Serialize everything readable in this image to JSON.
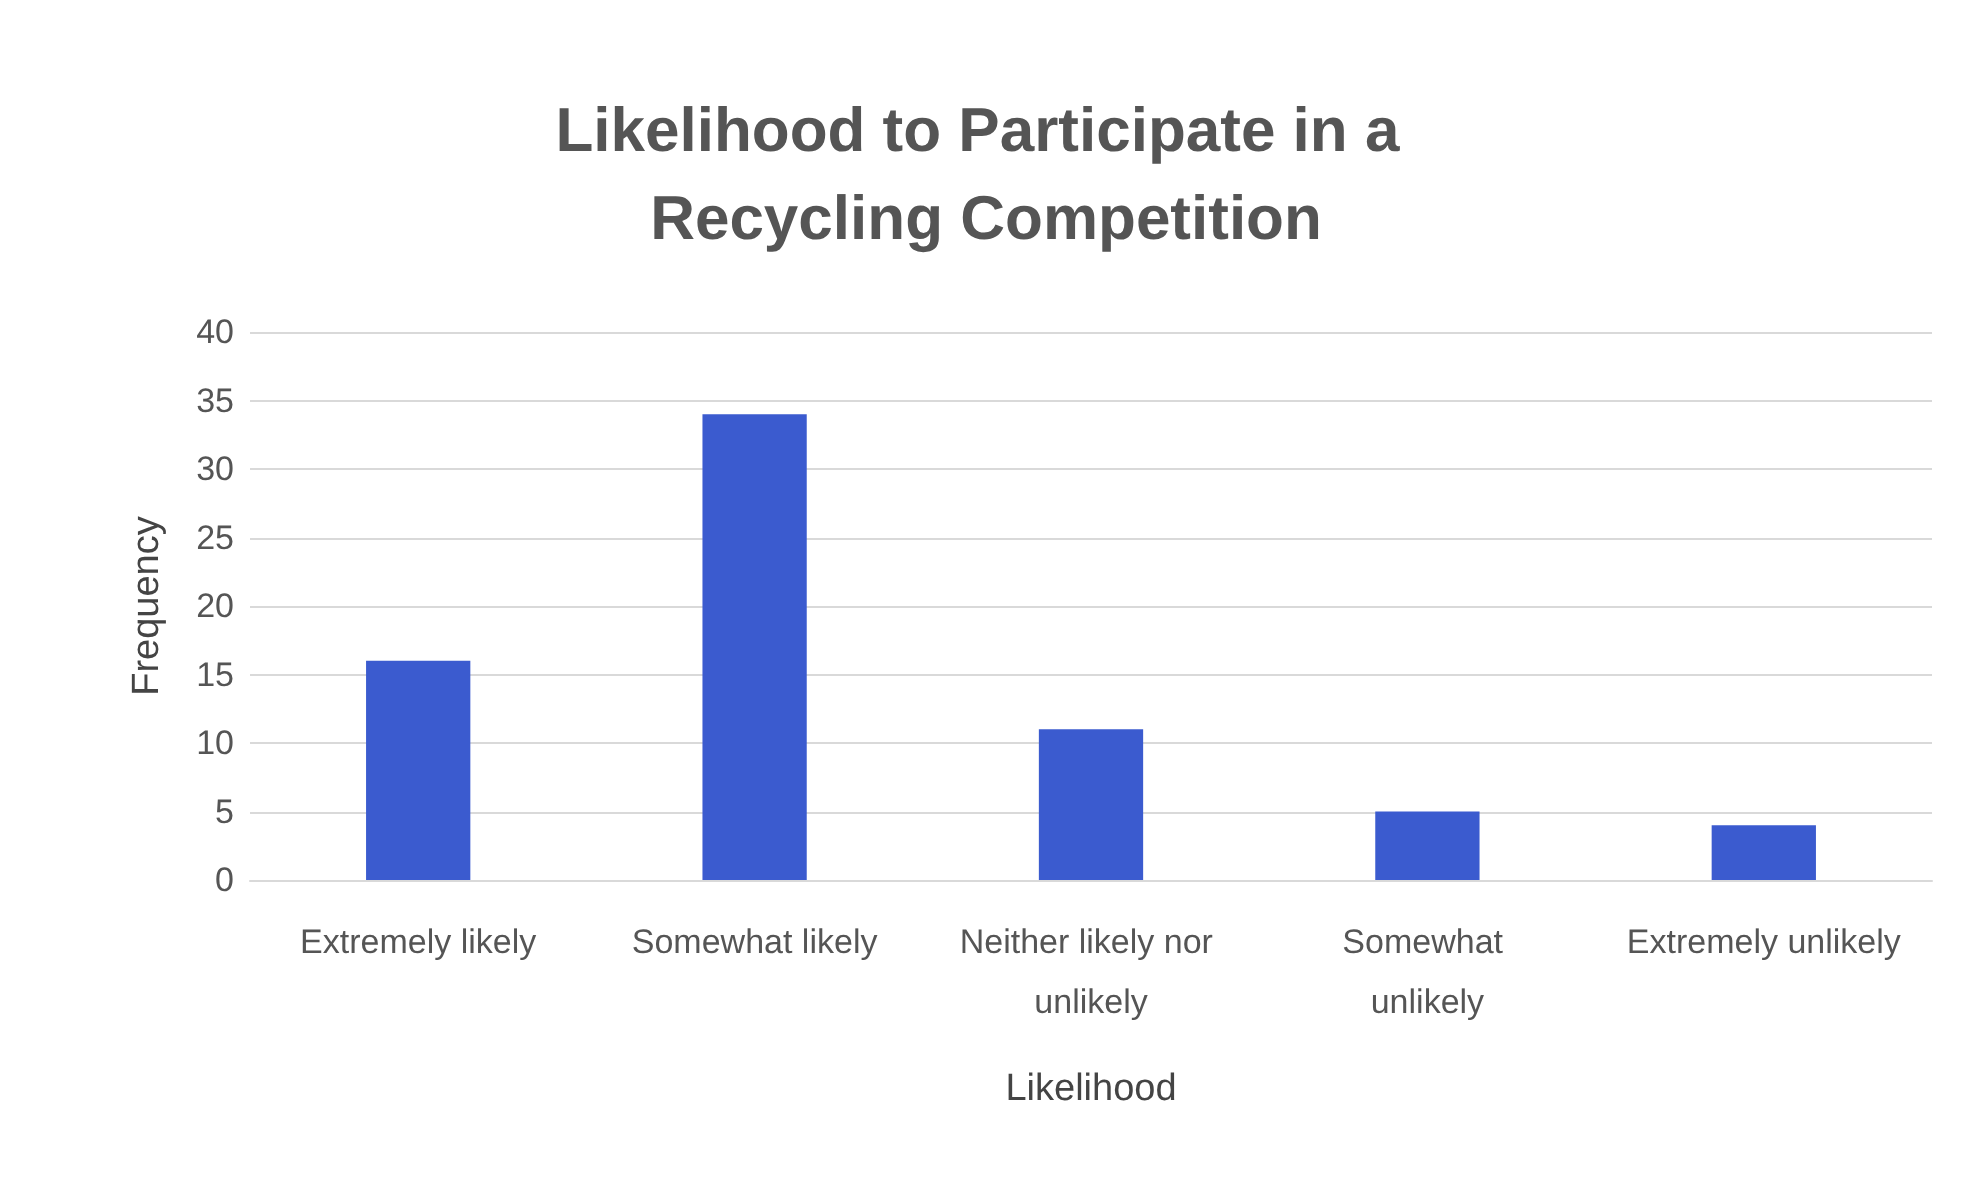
{
  "chart_data": {
    "type": "bar",
    "title": "Likelihood to Participate in a Recycling Competition",
    "xlabel": "Likelihood",
    "ylabel": "Frequency",
    "categories": [
      "Extremely likely",
      "Somewhat likely",
      "Neither likely nor unlikely",
      "Somewhat unlikely",
      "Extremely unlikely"
    ],
    "values": [
      16,
      34,
      11,
      5,
      4
    ],
    "color": "#3b5bcf",
    "ylim": [
      0,
      40
    ],
    "yticks": [
      0,
      5,
      10,
      15,
      20,
      25,
      30,
      35,
      40
    ],
    "grid": "y"
  }
}
